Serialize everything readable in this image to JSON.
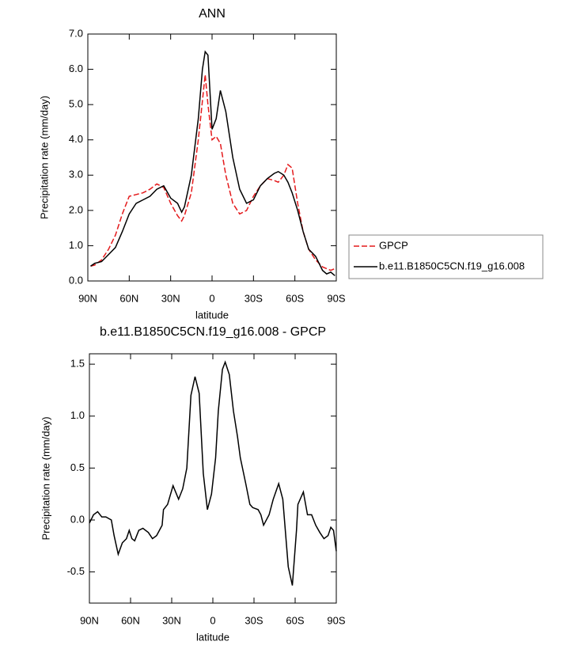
{
  "chart_data": [
    {
      "type": "line",
      "title": "ANN",
      "xlabel": "latitude",
      "ylabel": "Precipitation rate (mm/day)",
      "x": [
        88,
        85,
        80,
        75,
        70,
        65,
        60,
        55,
        50,
        45,
        40,
        35,
        30,
        25,
        22,
        20,
        15,
        10,
        7,
        5,
        3,
        0,
        -3,
        -6,
        -10,
        -15,
        -20,
        -25,
        -30,
        -35,
        -40,
        -45,
        -48,
        -52,
        -55,
        -58,
        -62,
        -66,
        -70,
        -75,
        -80,
        -83,
        -86,
        -89
      ],
      "series": [
        {
          "name": "GPCP",
          "color": "#e41a1c",
          "dash": true,
          "values": [
            0.42,
            0.45,
            0.6,
            0.9,
            1.3,
            1.9,
            2.4,
            2.45,
            2.5,
            2.6,
            2.75,
            2.65,
            2.2,
            1.85,
            1.7,
            1.85,
            2.5,
            4.0,
            5.1,
            5.85,
            5.0,
            4.0,
            4.1,
            3.9,
            3.0,
            2.2,
            1.9,
            2.0,
            2.4,
            2.7,
            2.9,
            2.85,
            2.8,
            3.0,
            3.3,
            3.2,
            2.2,
            1.4,
            0.9,
            0.6,
            0.4,
            0.35,
            0.3,
            0.35
          ]
        },
        {
          "name": "b.e11.B1850C5CN.f19_g16.008",
          "color": "#000000",
          "dash": false,
          "values": [
            0.42,
            0.5,
            0.55,
            0.75,
            0.95,
            1.4,
            1.9,
            2.2,
            2.3,
            2.4,
            2.6,
            2.7,
            2.35,
            2.2,
            1.95,
            2.1,
            3.0,
            4.6,
            6.0,
            6.5,
            6.4,
            4.3,
            4.6,
            5.4,
            4.8,
            3.5,
            2.6,
            2.2,
            2.3,
            2.7,
            2.9,
            3.05,
            3.1,
            3.0,
            2.8,
            2.5,
            2.0,
            1.4,
            0.9,
            0.7,
            0.3,
            0.2,
            0.25,
            0.15
          ]
        }
      ],
      "xlim": [
        90,
        -90
      ],
      "xticks": [
        {
          "value": 90,
          "label": "90N"
        },
        {
          "value": 60,
          "label": "60N"
        },
        {
          "value": 30,
          "label": "30N"
        },
        0,
        {
          "value": -30,
          "label": "30S"
        },
        {
          "value": -60,
          "label": "60S"
        },
        {
          "value": -90,
          "label": "90S"
        }
      ],
      "ylim": [
        0,
        7
      ],
      "yticks": [
        {
          "value": 0,
          "label": "0.0"
        },
        {
          "value": 1,
          "label": "1.0"
        },
        {
          "value": 2,
          "label": "2.0"
        },
        {
          "value": 3,
          "label": "3.0"
        },
        {
          "value": 4,
          "label": "4.0"
        },
        {
          "value": 5,
          "label": "5.0"
        },
        {
          "value": 6,
          "label": "6.0"
        },
        {
          "value": 7,
          "label": "7.0"
        }
      ],
      "legend": "outside-right"
    },
    {
      "type": "line",
      "title": "b.e11.B1850C5CN.f19_g16.008 - GPCP",
      "xlabel": "latitude",
      "ylabel": "Precipitation rate (mm/day)",
      "x": [
        90,
        87,
        84,
        81,
        78,
        74,
        72,
        69,
        66,
        63,
        61,
        59,
        57,
        54,
        51,
        47,
        44,
        41,
        37,
        36,
        33,
        29,
        25,
        22,
        19,
        16,
        13,
        10,
        7,
        4,
        1,
        -2,
        -4,
        -7,
        -9,
        -12,
        -15,
        -18,
        -20,
        -24,
        -27,
        -29,
        -33,
        -35,
        -37,
        -41,
        -44,
        -48,
        -51,
        -55,
        -58,
        -61,
        -62,
        -66,
        -69,
        -72,
        -75,
        -78,
        -81,
        -84,
        -86,
        -88,
        -90
      ],
      "series": [
        {
          "color": "#000000",
          "dash": false,
          "values": [
            -0.03,
            0.05,
            0.08,
            0.03,
            0.03,
            0.0,
            -0.15,
            -0.33,
            -0.22,
            -0.18,
            -0.1,
            -0.18,
            -0.2,
            -0.1,
            -0.08,
            -0.12,
            -0.18,
            -0.15,
            -0.05,
            0.1,
            0.15,
            0.33,
            0.2,
            0.3,
            0.5,
            1.2,
            1.38,
            1.22,
            0.45,
            0.1,
            0.25,
            0.6,
            1.05,
            1.45,
            1.52,
            1.4,
            1.05,
            0.8,
            0.6,
            0.35,
            0.15,
            0.12,
            0.1,
            0.05,
            -0.05,
            0.05,
            0.2,
            0.35,
            0.2,
            -0.45,
            -0.63,
            -0.1,
            0.15,
            0.27,
            0.05,
            0.05,
            -0.05,
            -0.12,
            -0.18,
            -0.15,
            -0.07,
            -0.1,
            -0.3
          ]
        }
      ],
      "xlim": [
        90,
        -90
      ],
      "xticks": [
        {
          "value": 90,
          "label": "90N"
        },
        {
          "value": 60,
          "label": "60N"
        },
        {
          "value": 30,
          "label": "30N"
        },
        0,
        {
          "value": -30,
          "label": "30S"
        },
        {
          "value": -60,
          "label": "60S"
        },
        {
          "value": -90,
          "label": "90S"
        }
      ],
      "ylim": [
        -0.8,
        1.6
      ],
      "yticks": [
        -0.5,
        {
          "value": 0,
          "label": "0.0"
        },
        0.5,
        {
          "value": 1,
          "label": "1.0"
        },
        1.5
      ]
    }
  ]
}
